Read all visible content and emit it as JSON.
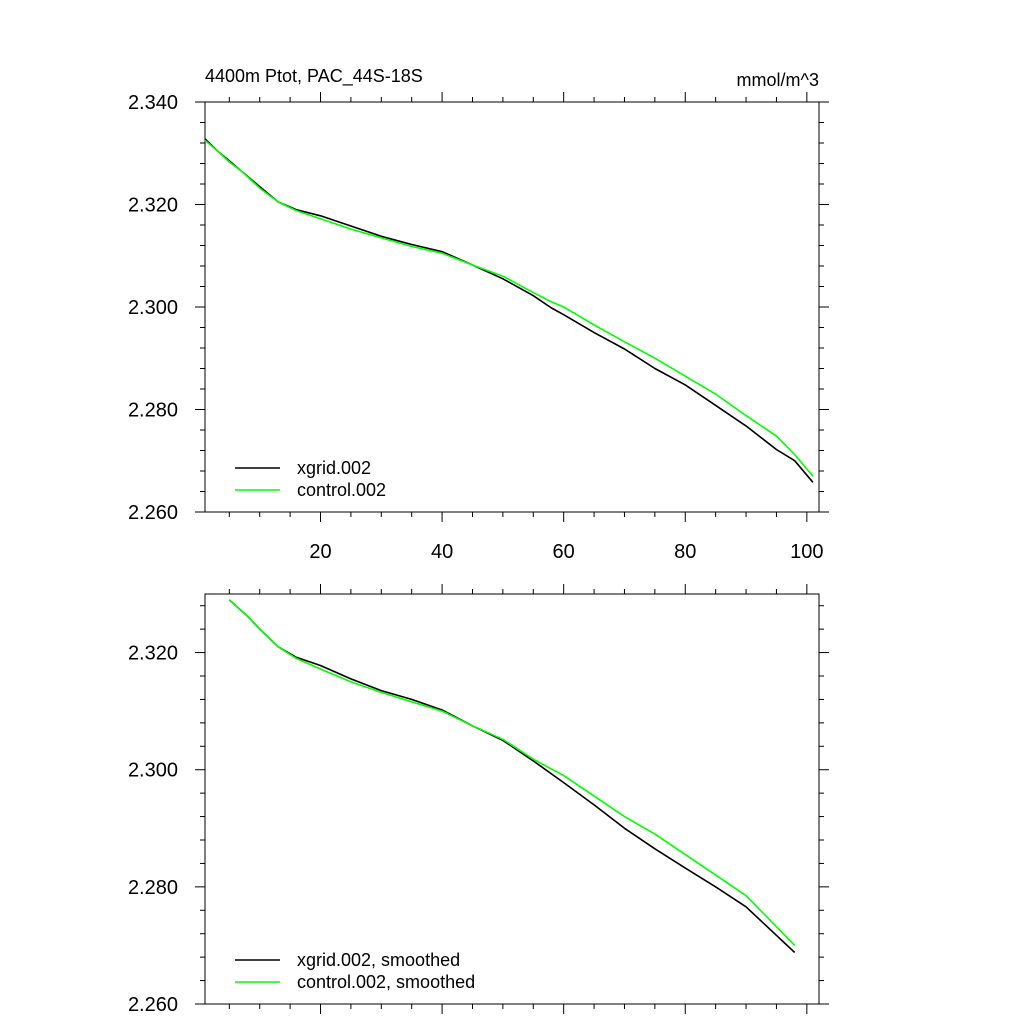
{
  "chart_data": [
    {
      "type": "line",
      "title": "4400m Ptot, PAC_44S-18S",
      "units": "mmol/m^3",
      "xlim": [
        1,
        102
      ],
      "ylim": [
        2.26,
        2.34
      ],
      "xticks": [
        20,
        40,
        60,
        80,
        100
      ],
      "xtick_labels": [
        "20",
        "40",
        "60",
        "80",
        "100"
      ],
      "yticks": [
        2.26,
        2.28,
        2.3,
        2.32,
        2.34
      ],
      "ytick_labels": [
        "2.260",
        "2.280",
        "2.300",
        "2.320",
        "2.340"
      ],
      "legend_position": "bottom-left",
      "series": [
        {
          "name": "xgrid.002",
          "color": "#000000",
          "x": [
            1,
            3,
            5,
            7,
            10,
            13,
            16,
            20,
            25,
            30,
            35,
            40,
            45,
            50,
            55,
            58,
            60,
            65,
            70,
            75,
            80,
            85,
            90,
            95,
            98,
            101
          ],
          "y": [
            2.3328,
            2.3305,
            2.3285,
            2.3265,
            2.3235,
            2.3205,
            2.319,
            2.3178,
            2.3158,
            2.3138,
            2.3122,
            2.3108,
            2.3082,
            2.3055,
            2.3022,
            2.2998,
            2.2985,
            2.295,
            2.2918,
            2.288,
            2.2848,
            2.2808,
            2.2768,
            2.2722,
            2.27,
            2.2658
          ]
        },
        {
          "name": "control.002",
          "color": "#00ff00",
          "x": [
            1,
            3,
            5,
            7,
            10,
            13,
            16,
            20,
            25,
            30,
            35,
            40,
            45,
            50,
            55,
            58,
            60,
            65,
            70,
            75,
            80,
            85,
            90,
            95,
            98,
            101
          ],
          "y": [
            2.3325,
            2.3305,
            2.3283,
            2.3265,
            2.3232,
            2.3205,
            2.3188,
            2.3172,
            2.3152,
            2.3135,
            2.3118,
            2.3105,
            2.3082,
            2.306,
            2.3028,
            2.301,
            2.3,
            2.2965,
            2.2932,
            2.29,
            2.2865,
            2.283,
            2.2788,
            2.2748,
            2.2712,
            2.267
          ]
        }
      ]
    },
    {
      "type": "line",
      "title": "",
      "xlim": [
        1,
        102
      ],
      "ylim": [
        2.26,
        2.33
      ],
      "xticks": [
        20,
        40,
        60,
        80,
        100
      ],
      "xtick_labels": [],
      "yticks": [
        2.26,
        2.28,
        2.3,
        2.32
      ],
      "ytick_labels": [
        "2.260",
        "2.280",
        "2.300",
        "2.320"
      ],
      "legend_position": "bottom-left",
      "series": [
        {
          "name": "xgrid.002, smoothed",
          "color": "#000000",
          "x": [
            5,
            8,
            10,
            13,
            16,
            20,
            25,
            30,
            35,
            40,
            45,
            50,
            55,
            60,
            65,
            70,
            75,
            80,
            85,
            90,
            98
          ],
          "y": [
            2.329,
            2.3262,
            2.324,
            2.321,
            2.3192,
            2.3178,
            2.3155,
            2.3135,
            2.312,
            2.3102,
            2.3075,
            2.305,
            2.3015,
            2.2978,
            2.294,
            2.29,
            2.2865,
            2.2832,
            2.28,
            2.2766,
            2.2688
          ]
        },
        {
          "name": "control.002, smoothed",
          "color": "#00ff00",
          "x": [
            5,
            8,
            10,
            13,
            16,
            20,
            25,
            30,
            35,
            40,
            45,
            50,
            55,
            60,
            65,
            70,
            75,
            80,
            85,
            90,
            98
          ],
          "y": [
            2.329,
            2.3262,
            2.324,
            2.321,
            2.319,
            2.3172,
            2.315,
            2.3132,
            2.3116,
            2.31,
            2.3075,
            2.3052,
            2.3018,
            2.299,
            2.2955,
            2.292,
            2.289,
            2.2855,
            2.282,
            2.2785,
            2.27
          ]
        }
      ]
    }
  ]
}
